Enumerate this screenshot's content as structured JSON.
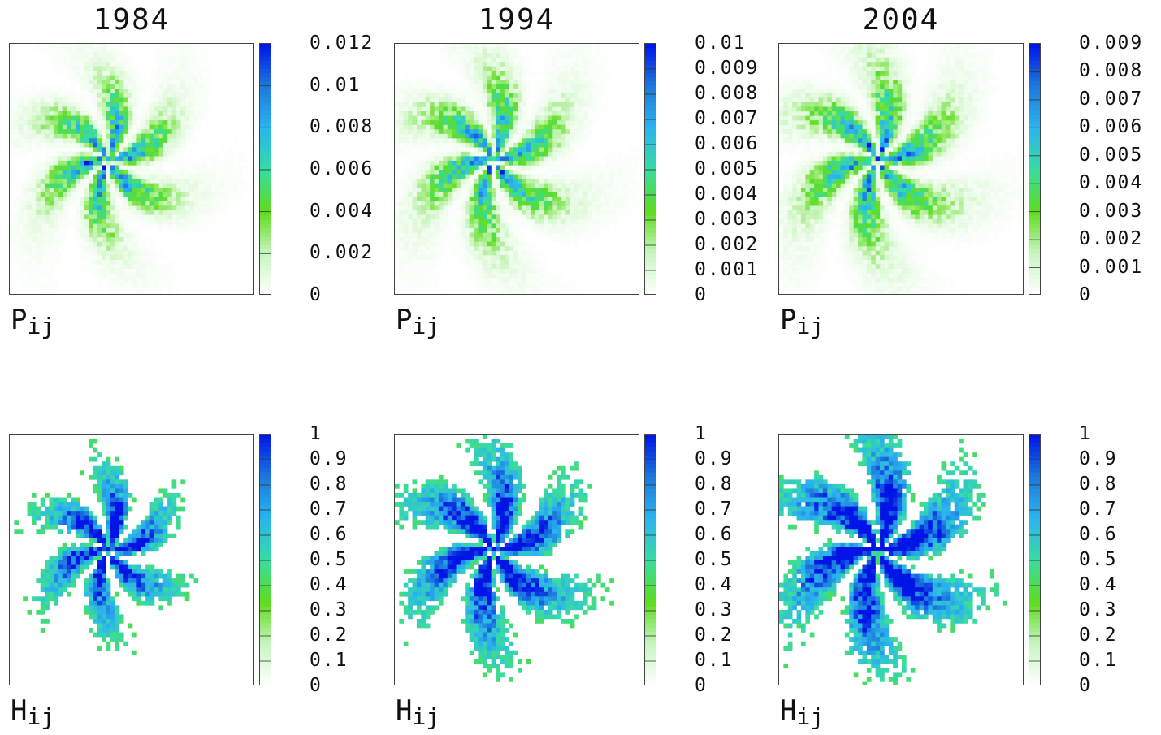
{
  "figure": {
    "column_titles": [
      "1984",
      "1994",
      "2004"
    ],
    "row_labels": [
      {
        "symbol": "P",
        "subscript": "ij"
      },
      {
        "symbol": "H",
        "subscript": "ij"
      }
    ]
  },
  "chart_data": [
    {
      "type": "heatmap",
      "panel": "P-1984",
      "title": "1984",
      "label": "Pij",
      "colorbar_range": [
        0,
        0.012
      ],
      "colorbar_ticks": [
        "0.012",
        "0.01",
        "0.008",
        "0.006",
        "0.004",
        "0.002",
        "0"
      ],
      "peak_value": 0.007,
      "spread": 0.85,
      "seed": 11
    },
    {
      "type": "heatmap",
      "panel": "P-1994",
      "title": "1994",
      "label": "Pij",
      "colorbar_range": [
        0,
        0.01
      ],
      "colorbar_ticks": [
        "0.01",
        "0.009",
        "0.008",
        "0.007",
        "0.006",
        "0.005",
        "0.004",
        "0.003",
        "0.002",
        "0.001",
        "0"
      ],
      "peak_value": 0.0055,
      "spread": 0.95,
      "seed": 23
    },
    {
      "type": "heatmap",
      "panel": "P-2004",
      "title": "2004",
      "label": "Pij",
      "colorbar_range": [
        0,
        0.009
      ],
      "colorbar_ticks": [
        "0.009",
        "0.008",
        "0.007",
        "0.006",
        "0.005",
        "0.004",
        "0.003",
        "0.002",
        "0.001",
        "0"
      ],
      "peak_value": 0.005,
      "spread": 1.0,
      "seed": 37
    },
    {
      "type": "heatmap",
      "panel": "H-1984",
      "title": "1984",
      "label": "Hij",
      "colorbar_range": [
        0,
        1
      ],
      "colorbar_ticks": [
        "1",
        "0.9",
        "0.8",
        "0.7",
        "0.6",
        "0.5",
        "0.4",
        "0.3",
        "0.2",
        "0.1",
        "0"
      ],
      "peak_value": 0.75,
      "spread": 0.8,
      "seed": 41
    },
    {
      "type": "heatmap",
      "panel": "H-1994",
      "title": "1994",
      "label": "Hij",
      "colorbar_range": [
        0,
        1
      ],
      "colorbar_ticks": [
        "1",
        "0.9",
        "0.8",
        "0.7",
        "0.6",
        "0.5",
        "0.4",
        "0.3",
        "0.2",
        "0.1",
        "0"
      ],
      "peak_value": 0.8,
      "spread": 1.0,
      "seed": 53
    },
    {
      "type": "heatmap",
      "panel": "H-2004",
      "title": "2004",
      "label": "Hij",
      "colorbar_range": [
        0,
        1
      ],
      "colorbar_ticks": [
        "1",
        "0.9",
        "0.8",
        "0.7",
        "0.6",
        "0.5",
        "0.4",
        "0.3",
        "0.2",
        "0.1",
        "0"
      ],
      "peak_value": 0.85,
      "spread": 1.1,
      "seed": 67
    }
  ],
  "colors": {
    "scale": [
      "#ffffff",
      "#c8f5c0",
      "#5edc1c",
      "#38dca0",
      "#2ab4f0",
      "#1c78dc",
      "#0014e6"
    ],
    "frame": "#444444"
  }
}
